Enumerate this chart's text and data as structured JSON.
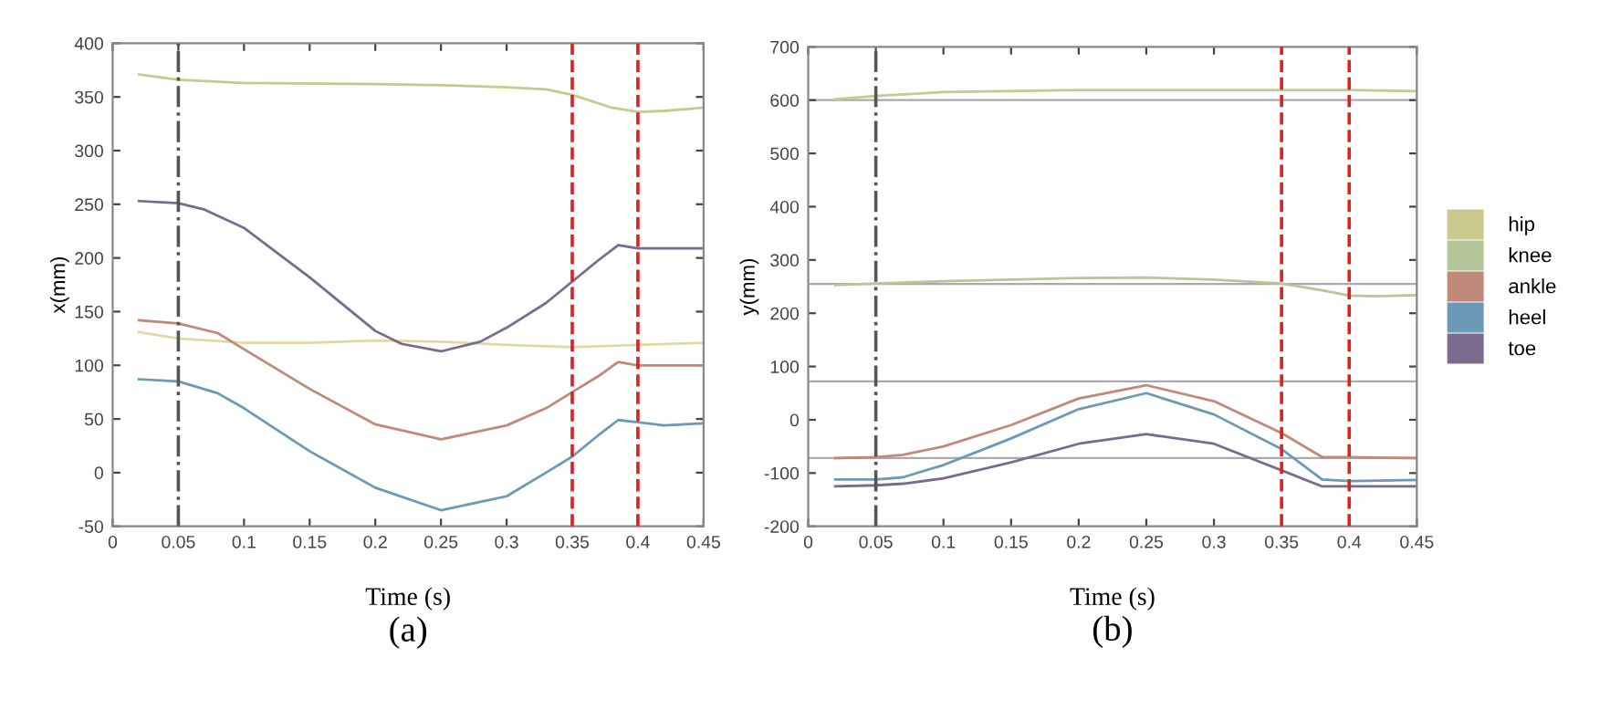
{
  "chart_data": [
    {
      "type": "line",
      "xlabel": "Time (s)",
      "ylabel": "x(mm)",
      "annotations": [
        "(a)"
      ],
      "xlim": [
        0,
        0.45
      ],
      "ylim": [
        -50,
        400
      ],
      "xticks": [
        0,
        0.05,
        0.1,
        0.15,
        0.2,
        0.25,
        0.3,
        0.35,
        0.4,
        0.45
      ],
      "yticks": [
        -50,
        0,
        50,
        100,
        150,
        200,
        250,
        300,
        350,
        400
      ],
      "grid": false,
      "legend": false,
      "line_style": "solid",
      "series": [
        {
          "color": "#c9c98f",
          "x": [
            0.02,
            0.05,
            0.1,
            0.2,
            0.25,
            0.3,
            0.33,
            0.35,
            0.38,
            0.4,
            0.42,
            0.45
          ],
          "values": [
            371,
            366,
            363,
            362,
            361,
            359,
            357,
            352,
            340,
            336,
            337,
            340
          ]
        },
        {
          "color": "#e2d9a2",
          "x": [
            0.02,
            0.05,
            0.1,
            0.15,
            0.2,
            0.25,
            0.3,
            0.35,
            0.4,
            0.45
          ],
          "values": [
            131,
            125,
            121,
            121,
            123,
            122,
            119,
            117,
            119,
            121
          ]
        },
        {
          "color": "#c08a7a",
          "x": [
            0.02,
            0.05,
            0.08,
            0.1,
            0.15,
            0.2,
            0.25,
            0.3,
            0.33,
            0.35,
            0.37,
            0.385,
            0.4,
            0.45
          ],
          "values": [
            142,
            139,
            130,
            115,
            78,
            45,
            31,
            44,
            60,
            75,
            90,
            103,
            100,
            100
          ]
        },
        {
          "color": "#6a9ab8",
          "x": [
            0.02,
            0.05,
            0.08,
            0.1,
            0.15,
            0.2,
            0.25,
            0.3,
            0.33,
            0.35,
            0.37,
            0.385,
            0.4,
            0.42,
            0.45
          ],
          "values": [
            87,
            85,
            74,
            60,
            20,
            -14,
            -35,
            -22,
            0,
            15,
            35,
            49,
            47,
            44,
            46
          ]
        },
        {
          "color": "#7a6a8e",
          "x": [
            0.02,
            0.05,
            0.07,
            0.1,
            0.15,
            0.2,
            0.22,
            0.25,
            0.28,
            0.3,
            0.33,
            0.35,
            0.37,
            0.385,
            0.4,
            0.45
          ],
          "values": [
            253,
            251,
            245,
            228,
            182,
            132,
            120,
            113,
            122,
            135,
            158,
            178,
            198,
            212,
            209,
            209
          ]
        }
      ],
      "ref_lines": [
        {
          "axis": "x",
          "value": 0.05,
          "color": "#555555",
          "line_style": "dashdot"
        },
        {
          "axis": "x",
          "value": 0.35,
          "color": "#e02020",
          "line_style": "dashed"
        },
        {
          "axis": "x",
          "value": 0.4,
          "color": "#e02020",
          "line_style": "dashed"
        }
      ]
    },
    {
      "type": "line",
      "xlabel": "Time (s)",
      "ylabel": "y(mm)",
      "annotations": [
        "(b)"
      ],
      "xlim": [
        0,
        0.45
      ],
      "ylim": [
        -200,
        700
      ],
      "xticks": [
        0,
        0.05,
        0.1,
        0.15,
        0.2,
        0.25,
        0.3,
        0.35,
        0.4,
        0.45
      ],
      "yticks": [
        -200,
        -100,
        0,
        100,
        200,
        300,
        400,
        500,
        600,
        700
      ],
      "grid": false,
      "legend": "right",
      "line_style": "solid",
      "series": [
        {
          "name": "hip",
          "color": "#c9c98f",
          "x": [
            0.02,
            0.05,
            0.1,
            0.2,
            0.3,
            0.4,
            0.45
          ],
          "values": [
            602,
            608,
            615,
            619,
            619,
            619,
            617
          ]
        },
        {
          "name": "knee",
          "color": "#b5c79a",
          "x": [
            0.02,
            0.05,
            0.1,
            0.2,
            0.25,
            0.3,
            0.35,
            0.38,
            0.4,
            0.42,
            0.45
          ],
          "values": [
            253,
            256,
            260,
            266,
            267,
            263,
            256,
            243,
            233,
            232,
            234
          ]
        },
        {
          "name": "ankle",
          "color": "#c08a7a",
          "x": [
            0.02,
            0.05,
            0.07,
            0.1,
            0.15,
            0.2,
            0.25,
            0.3,
            0.35,
            0.38,
            0.4,
            0.45
          ],
          "values": [
            -72,
            -70,
            -66,
            -50,
            -10,
            40,
            65,
            35,
            -25,
            -70,
            -70,
            -72
          ]
        },
        {
          "name": "heel",
          "color": "#6a9ab8",
          "x": [
            0.02,
            0.05,
            0.07,
            0.1,
            0.15,
            0.2,
            0.25,
            0.3,
            0.35,
            0.38,
            0.4,
            0.45
          ],
          "values": [
            -112,
            -112,
            -108,
            -85,
            -35,
            20,
            50,
            10,
            -55,
            -112,
            -115,
            -113
          ]
        },
        {
          "name": "toe",
          "color": "#7a6a8e",
          "x": [
            0.02,
            0.05,
            0.07,
            0.1,
            0.15,
            0.2,
            0.25,
            0.3,
            0.35,
            0.38,
            0.4,
            0.45
          ],
          "values": [
            -125,
            -123,
            -120,
            -110,
            -80,
            -45,
            -27,
            -45,
            -95,
            -125,
            -125,
            -125
          ]
        }
      ],
      "ref_lines": [
        {
          "axis": "y",
          "value": 600,
          "color": "#aaaaaa",
          "line_style": "solid"
        },
        {
          "axis": "y",
          "value": 255,
          "color": "#aaaaaa",
          "line_style": "solid"
        },
        {
          "axis": "y",
          "value": 72,
          "color": "#aaaaaa",
          "line_style": "solid"
        },
        {
          "axis": "y",
          "value": -72,
          "color": "#aaaaaa",
          "line_style": "solid"
        },
        {
          "axis": "x",
          "value": 0.05,
          "color": "#555555",
          "line_style": "dashdot"
        },
        {
          "axis": "x",
          "value": 0.35,
          "color": "#e02020",
          "line_style": "dashed"
        },
        {
          "axis": "x",
          "value": 0.4,
          "color": "#e02020",
          "line_style": "dashed"
        }
      ]
    }
  ]
}
